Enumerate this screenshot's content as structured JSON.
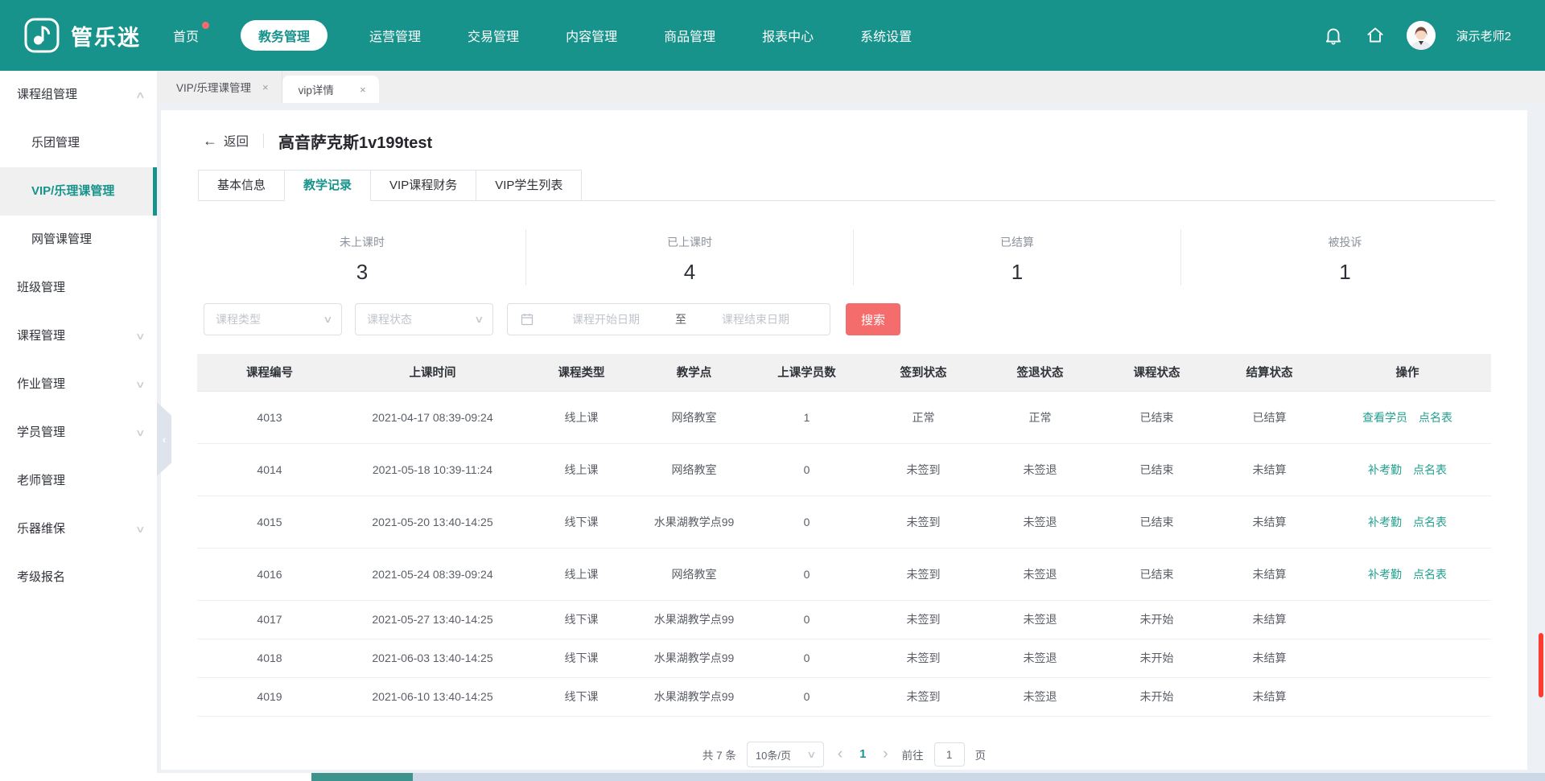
{
  "colors": {
    "primary": "#17938b",
    "danger": "#f56c6c",
    "link": "#21a08f"
  },
  "icons": {
    "logo": "brand-note-icon",
    "close": "×",
    "back": "←",
    "collapse": "‹",
    "chevron_up": "∧",
    "chevron_down": "∨",
    "prev": "‹",
    "next": "›"
  },
  "navbar": {
    "brand": "管乐迷",
    "items": [
      {
        "label": "首页",
        "dot": true
      },
      {
        "label": "教务管理",
        "active": true
      },
      {
        "label": "运营管理"
      },
      {
        "label": "交易管理"
      },
      {
        "label": "内容管理"
      },
      {
        "label": "商品管理"
      },
      {
        "label": "报表中心"
      },
      {
        "label": "系统设置"
      }
    ],
    "user": "演示老师2"
  },
  "pagetabs": [
    {
      "label": "VIP/乐理课管理"
    },
    {
      "label": "vip详情",
      "active": true
    }
  ],
  "sidebar": {
    "items": [
      {
        "label": "课程组管理",
        "level": 1,
        "chevron": "up"
      },
      {
        "label": "乐团管理",
        "level": 2
      },
      {
        "label": "VIP/乐理课管理",
        "level": 2,
        "active": true
      },
      {
        "label": "网管课管理",
        "level": 2
      },
      {
        "label": "班级管理",
        "level": 1
      },
      {
        "label": "课程管理",
        "level": 1,
        "chevron": "down"
      },
      {
        "label": "作业管理",
        "level": 1,
        "chevron": "down"
      },
      {
        "label": "学员管理",
        "level": 1,
        "chevron": "down"
      },
      {
        "label": "老师管理",
        "level": 1
      },
      {
        "label": "乐器维保",
        "level": 1,
        "chevron": "down"
      },
      {
        "label": "考级报名",
        "level": 1
      }
    ]
  },
  "detail": {
    "back": "返回",
    "title": "高音萨克斯1v199test",
    "tabs": [
      {
        "label": "基本信息"
      },
      {
        "label": "教学记录",
        "active": true
      },
      {
        "label": "VIP课程财务"
      },
      {
        "label": "VIP学生列表"
      }
    ],
    "stats": [
      {
        "label": "未上课时",
        "value": "3"
      },
      {
        "label": "已上课时",
        "value": "4"
      },
      {
        "label": "已结算",
        "value": "1"
      },
      {
        "label": "被投诉",
        "value": "1"
      }
    ]
  },
  "filters": {
    "course_type_placeholder": "课程类型",
    "course_status_placeholder": "课程状态",
    "date_start_placeholder": "课程开始日期",
    "date_separator": "至",
    "date_end_placeholder": "课程结束日期",
    "search_label": "搜索"
  },
  "table": {
    "headers": [
      "课程编号",
      "上课时间",
      "课程类型",
      "教学点",
      "上课学员数",
      "签到状态",
      "签退状态",
      "课程状态",
      "结算状态",
      "操作"
    ],
    "rows": [
      {
        "cells": [
          "4013",
          "2021-04-17 08:39-09:24",
          "线上课",
          "网络教室",
          "1",
          "正常",
          "正常",
          "已结束",
          "已结算"
        ],
        "actions": [
          "查看学员",
          "点名表"
        ]
      },
      {
        "cells": [
          "4014",
          "2021-05-18 10:39-11:24",
          "线上课",
          "网络教室",
          "0",
          "未签到",
          "未签退",
          "已结束",
          "未结算"
        ],
        "actions": [
          "补考勤",
          "点名表"
        ]
      },
      {
        "cells": [
          "4015",
          "2021-05-20 13:40-14:25",
          "线下课",
          "水果湖教学点99",
          "0",
          "未签到",
          "未签退",
          "已结束",
          "未结算"
        ],
        "actions": [
          "补考勤",
          "点名表"
        ]
      },
      {
        "cells": [
          "4016",
          "2021-05-24 08:39-09:24",
          "线上课",
          "网络教室",
          "0",
          "未签到",
          "未签退",
          "已结束",
          "未结算"
        ],
        "actions": [
          "补考勤",
          "点名表"
        ]
      },
      {
        "cells": [
          "4017",
          "2021-05-27 13:40-14:25",
          "线下课",
          "水果湖教学点99",
          "0",
          "未签到",
          "未签退",
          "未开始",
          "未结算"
        ],
        "actions": []
      },
      {
        "cells": [
          "4018",
          "2021-06-03 13:40-14:25",
          "线下课",
          "水果湖教学点99",
          "0",
          "未签到",
          "未签退",
          "未开始",
          "未结算"
        ],
        "actions": []
      },
      {
        "cells": [
          "4019",
          "2021-06-10 13:40-14:25",
          "线下课",
          "水果湖教学点99",
          "0",
          "未签到",
          "未签退",
          "未开始",
          "未结算"
        ],
        "actions": []
      }
    ]
  },
  "pagination": {
    "total": "共 7 条",
    "page_size": "10条/页",
    "page": "1",
    "goto_label": "前往",
    "goto_value": "1",
    "goto_unit": "页"
  }
}
